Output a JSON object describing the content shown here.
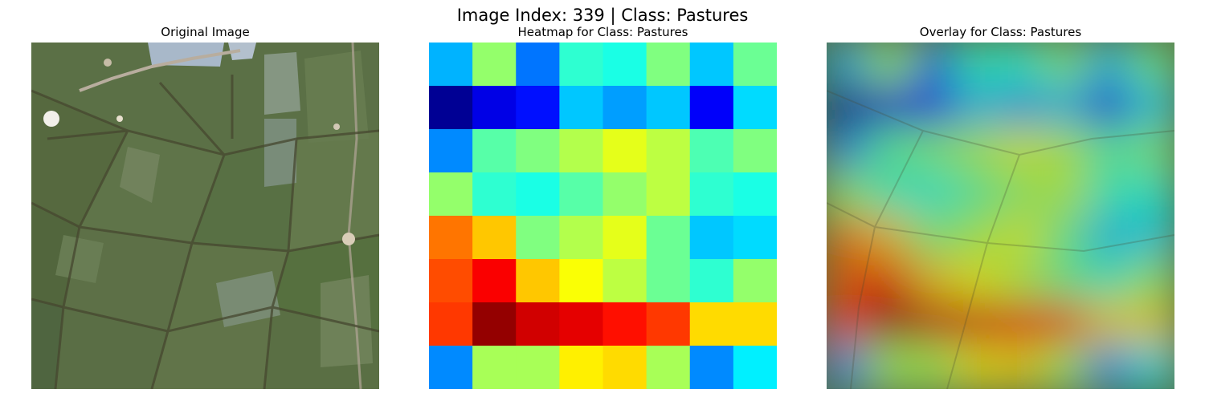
{
  "suptitle": "Image Index: 339 | Class: Pastures",
  "panels": {
    "original_title": "Original Image",
    "heatmap_title": "Heatmap for Class: Pastures",
    "overlay_title": "Overlay for Class: Pastures"
  },
  "colors": {
    "field_base": "#5a7044",
    "field_dark": "#465a36",
    "field_light": "#7d8d68",
    "road": "#b8aea0",
    "water": "#a9bacb",
    "hedge": "#4a4a34"
  },
  "chart_data": {
    "type": "heatmap",
    "colormap": "jet",
    "rows": 8,
    "cols": 8,
    "vmin": 0,
    "vmax": 1,
    "values": [
      [
        0.3,
        0.52,
        0.24,
        0.42,
        0.4,
        0.5,
        0.32,
        0.48
      ],
      [
        0.02,
        0.1,
        0.14,
        0.32,
        0.28,
        0.32,
        0.12,
        0.34
      ],
      [
        0.26,
        0.46,
        0.5,
        0.55,
        0.6,
        0.56,
        0.45,
        0.5
      ],
      [
        0.52,
        0.42,
        0.4,
        0.46,
        0.52,
        0.56,
        0.42,
        0.4
      ],
      [
        0.76,
        0.68,
        0.5,
        0.55,
        0.6,
        0.48,
        0.32,
        0.34
      ],
      [
        0.8,
        0.88,
        0.68,
        0.62,
        0.56,
        0.48,
        0.42,
        0.52
      ],
      [
        0.82,
        0.98,
        0.92,
        0.9,
        0.86,
        0.82,
        0.66,
        0.66
      ],
      [
        0.26,
        0.54,
        0.54,
        0.64,
        0.66,
        0.54,
        0.26,
        0.36
      ]
    ]
  }
}
